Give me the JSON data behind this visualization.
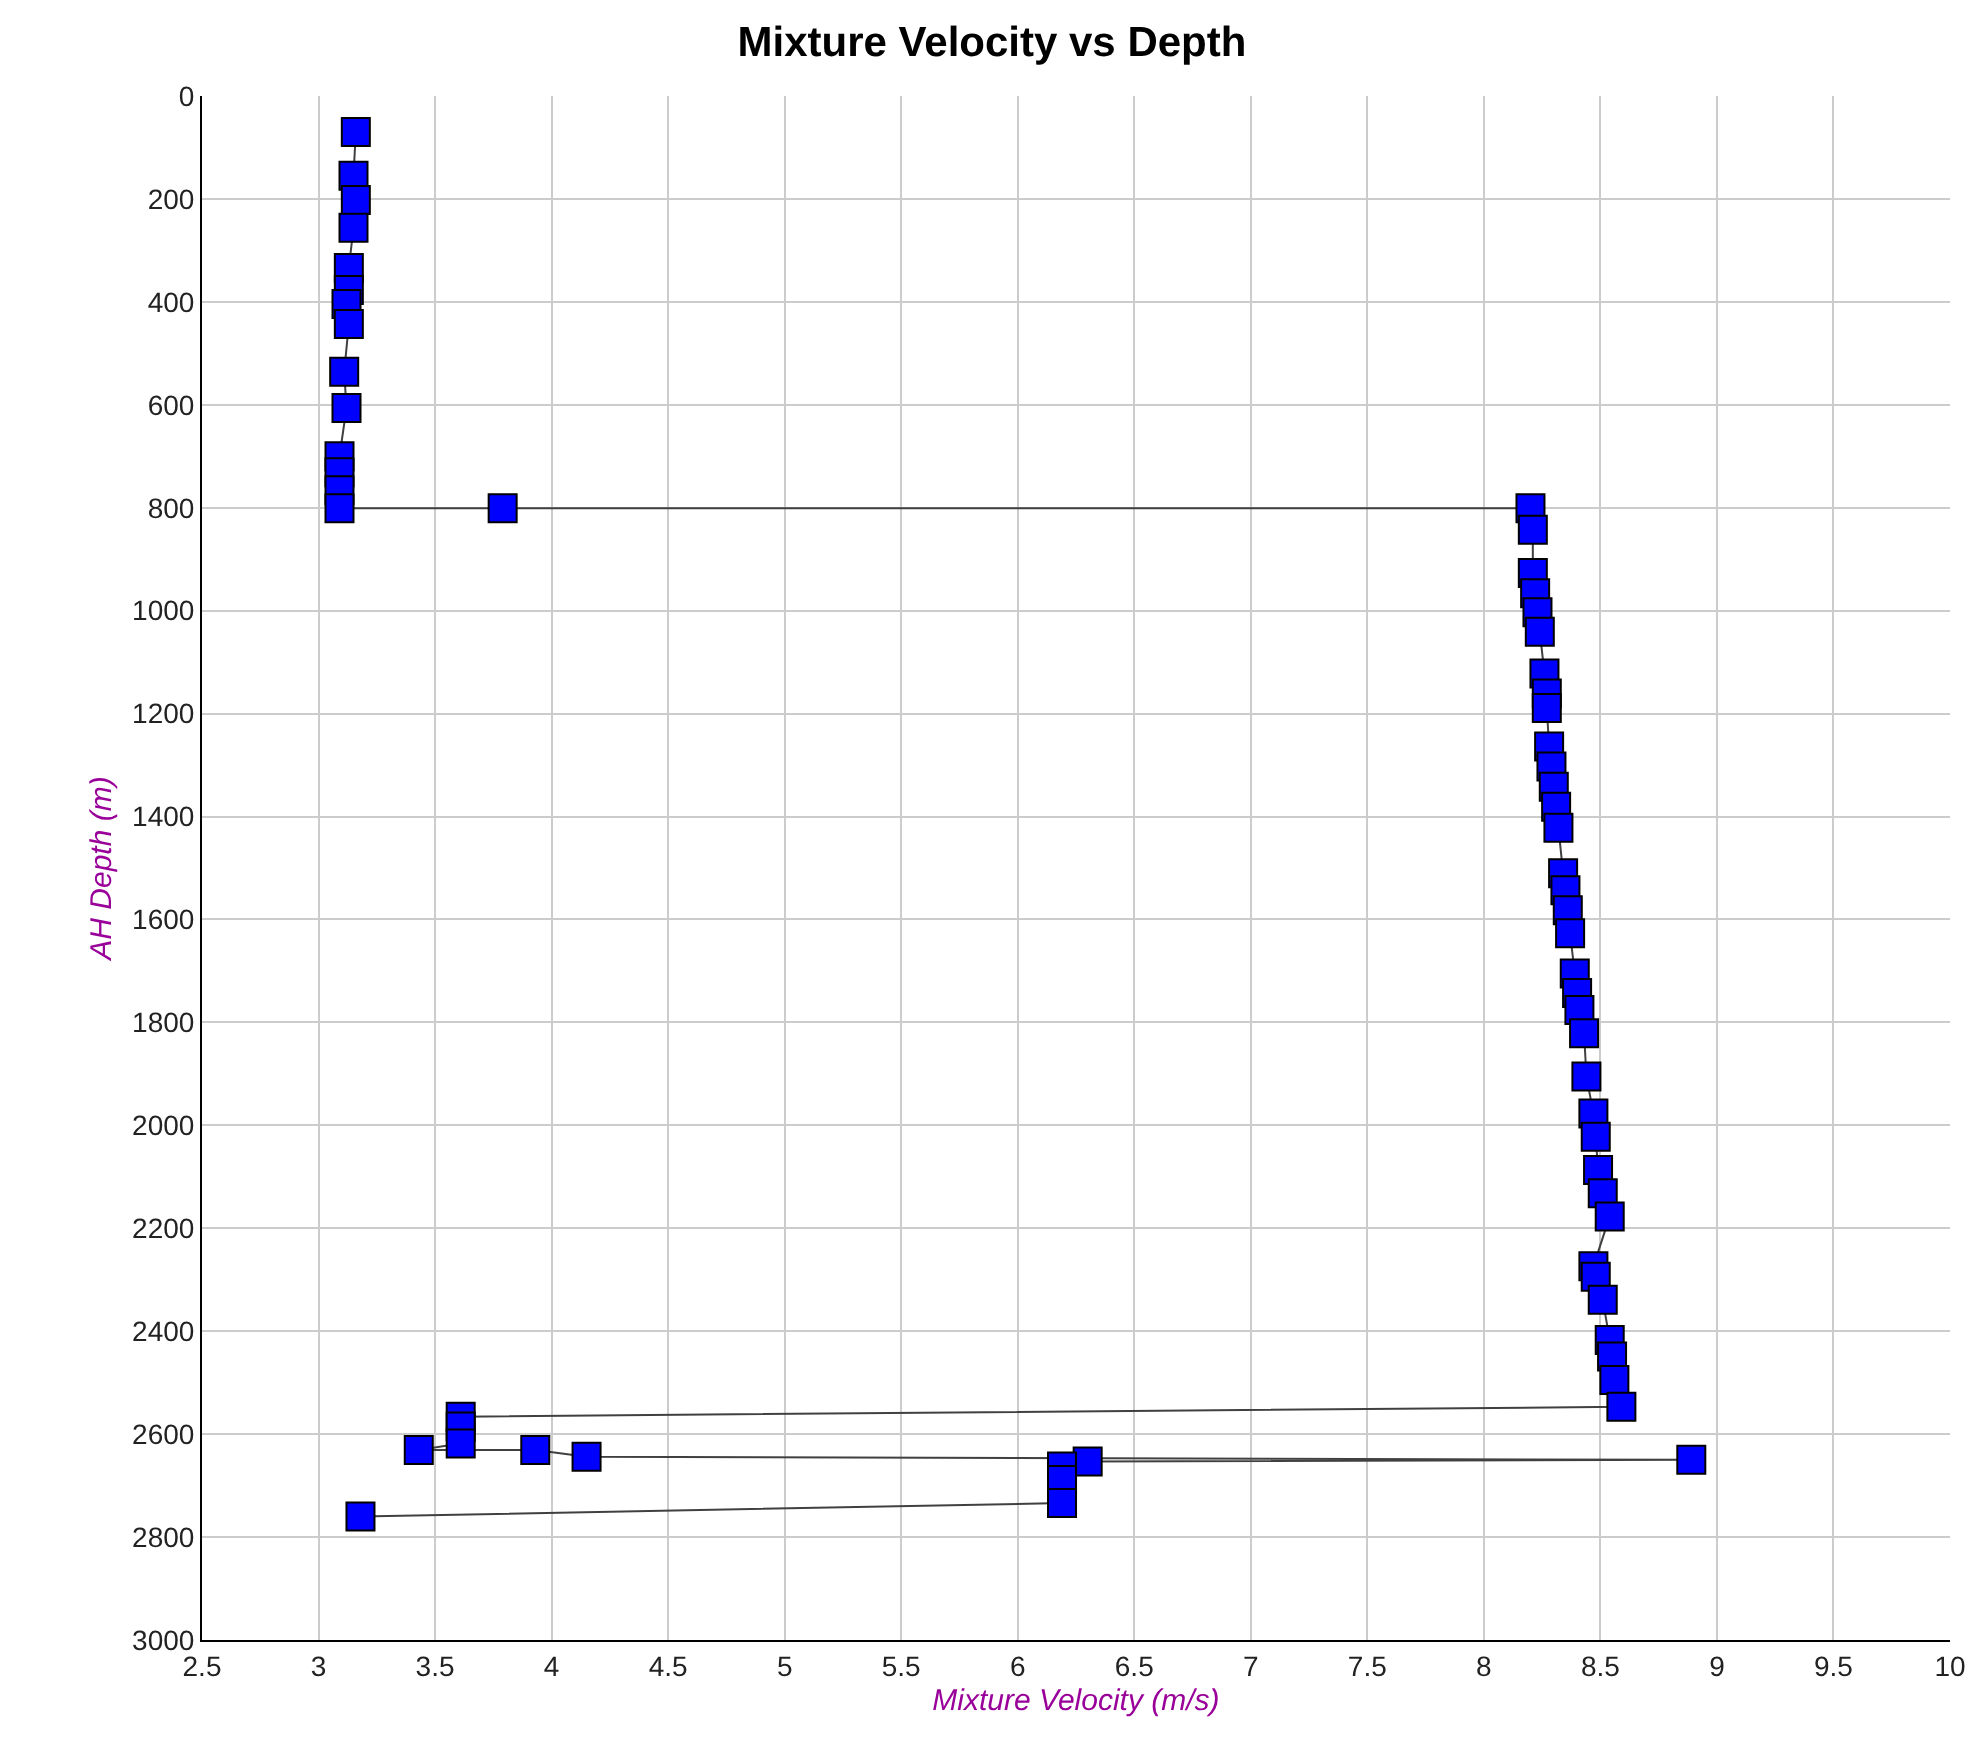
{
  "chart_data": {
    "type": "line",
    "title": "Mixture Velocity vs Depth",
    "xlabel": "Mixture Velocity (m/s)",
    "ylabel": "AH Depth (m)",
    "x": [
      3.16,
      3.15,
      3.16,
      3.15,
      3.13,
      3.13,
      3.12,
      3.13,
      3.11,
      3.12,
      3.09,
      3.09,
      3.09,
      3.09,
      3.79,
      8.2,
      8.21,
      8.21,
      8.22,
      8.23,
      8.24,
      8.26,
      8.27,
      8.27,
      8.28,
      8.29,
      8.3,
      8.31,
      8.32,
      8.34,
      8.35,
      8.36,
      8.37,
      8.39,
      8.4,
      8.41,
      8.43,
      8.44,
      8.47,
      8.48,
      8.49,
      8.51,
      8.54,
      8.47,
      8.48,
      8.51,
      8.54,
      8.55,
      8.56,
      8.59,
      3.61,
      3.61,
      3.61,
      3.43,
      3.93,
      4.15,
      8.89,
      6.3,
      6.19,
      6.19,
      6.19,
      3.18
    ],
    "series": [
      {
        "color": "#0000ff",
        "values": [
          70,
          155,
          202,
          256,
          334,
          377,
          404,
          443,
          536,
          606,
          700,
          731,
          766,
          801,
          801,
          801,
          843,
          927,
          966,
          1003,
          1041,
          1122,
          1161,
          1189,
          1264,
          1303,
          1342,
          1381,
          1422,
          1510,
          1543,
          1582,
          1627,
          1705,
          1743,
          1776,
          1821,
          1905,
          1977,
          2022,
          2087,
          2132,
          2177,
          2274,
          2294,
          2339,
          2417,
          2449,
          2495,
          2547,
          2566,
          2585,
          2618,
          2631,
          2631,
          2644,
          2650,
          2653,
          2663,
          2689,
          2734,
          2760
        ]
      }
    ],
    "xlim": [
      2.5,
      10
    ],
    "xticks": [
      2.5,
      3,
      3.5,
      4,
      4.5,
      5,
      5.5,
      6,
      6.5,
      7,
      7.5,
      8,
      8.5,
      9,
      9.5,
      10
    ],
    "ylim": [
      3000,
      0
    ],
    "yticks": [
      0,
      200,
      400,
      600,
      800,
      1000,
      1200,
      1400,
      1600,
      1800,
      2000,
      2200,
      2400,
      2600,
      2800,
      3000
    ],
    "grid": true,
    "marker": "square",
    "line_style": "solid"
  }
}
